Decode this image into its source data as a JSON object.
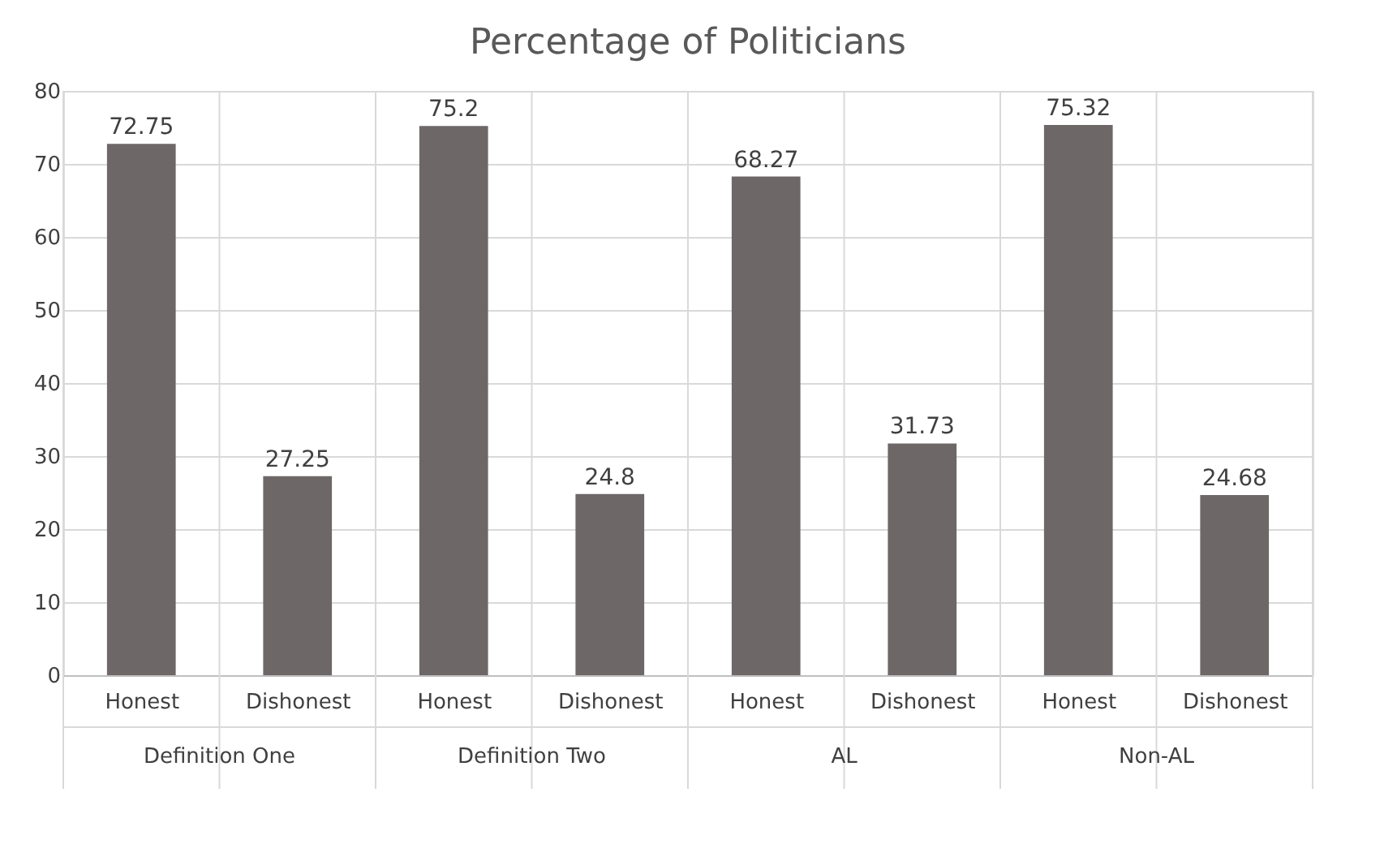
{
  "chart_data": {
    "type": "bar",
    "title": "Percentage of Politicians",
    "categories": [
      "Honest",
      "Dishonest",
      "Honest",
      "Dishonest",
      "Honest",
      "Dishonest",
      "Honest",
      "Dishonest"
    ],
    "values": [
      72.75,
      27.25,
      75.2,
      24.8,
      68.27,
      31.73,
      75.32,
      24.68
    ],
    "color": "#6d6767",
    "annotations": [
      "Definition One",
      "Definition Two",
      "AL",
      "Non-AL"
    ],
    "ylim": [
      0,
      80
    ],
    "yticks": [
      0,
      10,
      20,
      30,
      40,
      50,
      60,
      70,
      80
    ],
    "grid": true,
    "data_labels": true
  }
}
